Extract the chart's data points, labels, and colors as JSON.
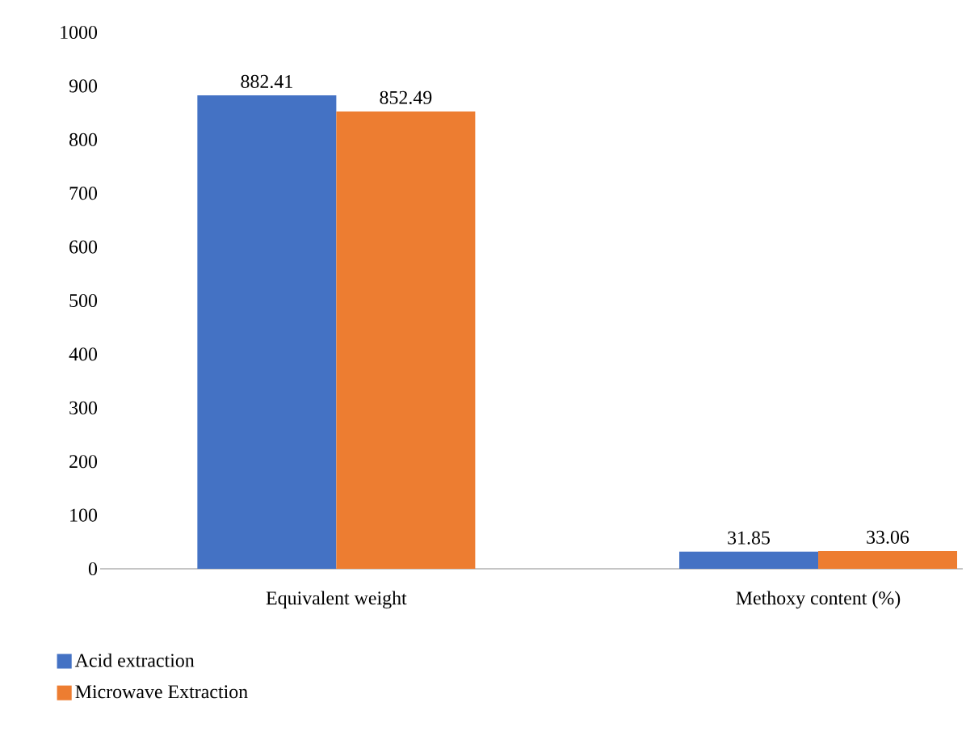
{
  "chart_data": {
    "type": "bar",
    "categories": [
      "Equivalent weight",
      "Methoxy content (%)"
    ],
    "series": [
      {
        "name": "Acid extraction",
        "color": "#4472c4",
        "values": [
          882.41,
          31.85
        ]
      },
      {
        "name": "Microwave Extraction",
        "color": "#ed7d31",
        "values": [
          852.49,
          33.06
        ]
      }
    ],
    "ylim": [
      0,
      1000
    ],
    "yticks": [
      0,
      100,
      200,
      300,
      400,
      500,
      600,
      700,
      800,
      900,
      1000
    ],
    "data_labels": true,
    "grid": false,
    "legend": "bottom left"
  }
}
